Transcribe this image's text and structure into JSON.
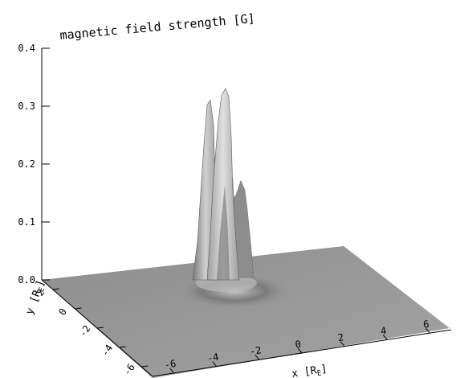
{
  "chart_data": {
    "type": "surface",
    "title": "magnetic field strength [G]",
    "zlim": [
      0.0,
      0.4
    ],
    "z_ticks": [
      "0.0",
      "0.1",
      "0.2",
      "0.3",
      "0.4"
    ],
    "x_axis_label": "x [R_E]",
    "x_axis_label_main": "x [R",
    "x_axis_label_sub": "E",
    "x_axis_label_close": "]",
    "x_ticks": [
      "-6",
      "-4",
      "-2",
      "0",
      "2",
      "4",
      "6"
    ],
    "y_axis_label": "y [R_E]",
    "y_axis_label_main": "y [R",
    "y_axis_label_sub": "E",
    "y_axis_label_close": "]",
    "y_ticks": [
      "2",
      "0",
      "-2",
      "-4",
      "-6"
    ],
    "surface_color": "#9a9a9a",
    "peaks": [
      {
        "name": "left-spike",
        "x": -0.9,
        "y": -1.0,
        "z": 0.31
      },
      {
        "name": "center-spike",
        "x": -0.3,
        "y": -1.3,
        "z": 0.33
      },
      {
        "name": "right-shoulder",
        "x": 0.3,
        "y": -1.5,
        "z": 0.17
      },
      {
        "name": "inner-shoulder",
        "x": -0.1,
        "y": -1.2,
        "z": 0.2
      }
    ],
    "grid": false
  }
}
